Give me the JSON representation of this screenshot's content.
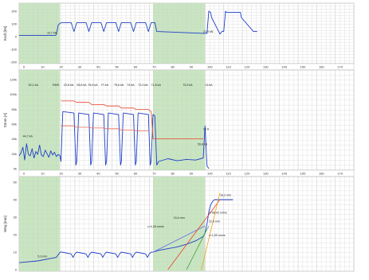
{
  "chart_data": [
    {
      "type": "line",
      "ylabel": "Kraft [kN]",
      "ylim": [
        -200,
        200
      ],
      "yticks": [
        "200",
        "100",
        "0",
        "-100",
        "-200"
      ],
      "xlim": [
        0,
        180
      ],
      "xticks": [
        "0",
        "10",
        "20",
        "30",
        "40",
        "50",
        "60",
        "70",
        "80",
        "90",
        "100",
        "110",
        "120",
        "130",
        "140",
        "150",
        "160",
        "170"
      ],
      "annotations": [
        "10,7 kN",
        "21,9 kN"
      ],
      "series": [
        {
          "color": "#1f3fc8",
          "x": [
            0,
            19.5,
            20,
            21,
            22,
            23,
            23.5,
            27,
            28,
            29.5,
            31,
            32,
            35,
            36,
            37.5,
            39,
            40,
            43,
            44,
            45.5,
            47,
            48,
            51,
            52,
            53.5,
            55,
            56,
            59,
            60,
            61.5,
            63,
            64,
            67,
            68,
            69.5,
            71,
            72,
            73,
            74,
            100,
            101,
            102,
            103,
            103.5,
            108,
            109,
            110,
            111,
            111.5,
            118.5,
            119,
            119.5,
            126,
            127,
            128
          ],
          "values": [
            10,
            10,
            15,
            90,
            105,
            110,
            110,
            110,
            110,
            40,
            110,
            110,
            110,
            110,
            40,
            110,
            110,
            110,
            110,
            40,
            110,
            110,
            110,
            110,
            40,
            110,
            110,
            110,
            110,
            40,
            110,
            110,
            110,
            110,
            40,
            110,
            110,
            110,
            40,
            25,
            25,
            200,
            190,
            150,
            20,
            40,
            40,
            200,
            190,
            190,
            190,
            150,
            40,
            40,
            40
          ]
        }
      ]
    },
    {
      "type": "line",
      "ylabel": "Strom [A]",
      "ylim": [
        0,
        125
      ],
      "yticks": [
        "120k",
        "100k",
        "80k",
        "60k",
        "40k",
        "20k",
        "0k"
      ],
      "xlim": [
        0,
        180
      ],
      "xticks": [
        "0",
        "10",
        "20",
        "30",
        "40",
        "50",
        "60",
        "70",
        "80",
        "90",
        "100",
        "110",
        "120",
        "130",
        "140",
        "150",
        "160",
        "170"
      ],
      "annotations": [
        "44,7 kA",
        "52,1 kA",
        "RMS",
        "22,6 kA",
        "26,8 kA",
        "76,4 kA",
        "77 kA",
        "75,6 kA",
        "74 kA",
        "72,2 kA",
        "71,8 kA",
        "70,3 kA",
        "13 kA",
        "22 A",
        "59,8 kA"
      ],
      "series": [
        {
          "name": "",
          "color": "#1f3fc8",
          "x": [
            0,
            1,
            2,
            3,
            4,
            5,
            6,
            7,
            8,
            9,
            10,
            11,
            12,
            13,
            14,
            15,
            16,
            17,
            18,
            19,
            20,
            21,
            22,
            22.5,
            23.5,
            29.5,
            30.5,
            31,
            32,
            37.5,
            38.5,
            39,
            40,
            45.5,
            46.5,
            47,
            48,
            53.5,
            54.5,
            55,
            56,
            61.5,
            62.5,
            63,
            64,
            69.5,
            70.5,
            71,
            72,
            73,
            74,
            75,
            80,
            85,
            90,
            95,
            99,
            100,
            101,
            102
          ],
          "values": [
            18,
            22,
            30,
            12,
            35,
            20,
            18,
            28,
            15,
            24,
            20,
            33,
            19,
            17,
            26,
            21,
            16,
            25,
            19,
            23,
            17,
            20,
            18,
            10,
            80,
            78,
            5,
            10,
            78,
            76,
            5,
            10,
            78,
            76,
            5,
            10,
            78,
            76,
            5,
            10,
            78,
            76,
            5,
            10,
            78,
            76,
            5,
            10,
            76,
            74,
            5,
            10,
            14,
            11,
            13,
            12,
            15,
            60,
            4,
            0
          ]
        },
        {
          "name": "",
          "color": "#e8442a",
          "x": [
            22.5,
            29.5,
            31,
            37.5,
            39,
            45.5,
            47,
            53.5,
            55,
            61.5,
            63,
            69.5,
            71,
            72,
            99
          ],
          "values": [
            95,
            95,
            93,
            93,
            90,
            90,
            88,
            88,
            85,
            85,
            83,
            83,
            80,
            42,
            42
          ]
        },
        {
          "name": "",
          "color": "#ee6a55",
          "x": [
            22.5,
            29.5,
            31,
            37.5,
            39,
            45.5,
            47,
            53.5,
            55,
            61.5,
            63,
            69.5
          ],
          "values": [
            60,
            60,
            58,
            58,
            57,
            57,
            56,
            56,
            54,
            54,
            53,
            53
          ]
        }
      ]
    },
    {
      "type": "line",
      "ylabel": "Weg [mm]",
      "ylim": [
        0,
        50
      ],
      "yticks": [
        "50",
        "40",
        "30",
        "20",
        "10",
        "0"
      ],
      "xlim": [
        0,
        180
      ],
      "xticks": [
        "0",
        "10",
        "20",
        "30",
        "40",
        "50",
        "60",
        "70",
        "80",
        "90",
        "100",
        "110",
        "120",
        "130",
        "140",
        "150",
        "160",
        "170"
      ],
      "annotations": [
        "5,3 mm",
        "v=0,28 mm/s",
        "15,4 mm",
        "v=56,42 mm/s",
        "22,9 mm",
        "v=1,59 mm/s",
        "16,2 mm"
      ],
      "series": [
        {
          "name": "",
          "color": "#1f3fc8",
          "x": [
            0,
            10,
            20,
            22,
            23,
            28,
            29,
            30,
            31,
            36,
            37,
            38,
            39,
            44,
            45,
            46,
            47,
            52,
            53,
            54,
            55,
            60,
            61,
            62,
            63,
            68,
            69,
            70,
            71,
            72,
            75,
            80,
            85,
            90,
            95,
            99,
            100,
            101,
            102,
            103,
            104,
            105,
            106,
            108,
            110,
            115
          ],
          "values": [
            4,
            5,
            7,
            10,
            10,
            9,
            7,
            9,
            10,
            9,
            7,
            9,
            10,
            9,
            7,
            9,
            10,
            9,
            7,
            9,
            10,
            9,
            7,
            9,
            10,
            9,
            7,
            9,
            10,
            10,
            11,
            12,
            13,
            14.5,
            16.5,
            19,
            21,
            26,
            33,
            37,
            39,
            40,
            40,
            40,
            40,
            40
          ]
        },
        {
          "name": "",
          "color": "#6b6be8",
          "x": [
            72,
            100
          ],
          "values": [
            10,
            25
          ]
        },
        {
          "name": "",
          "color": "#e8442a",
          "x": [
            80,
            108
          ],
          "values": [
            0,
            40
          ]
        },
        {
          "name": "",
          "color": "#3aa03a",
          "x": [
            90,
            102
          ],
          "values": [
            0,
            25
          ]
        },
        {
          "name": "",
          "color": "#f0a020",
          "x": [
            98,
            108
          ],
          "values": [
            0,
            44
          ]
        }
      ]
    }
  ],
  "colors": {
    "shade": "#c8e6c0",
    "grid": "#cfcfcf",
    "axis_text": "#333333",
    "marker": "#222222",
    "background": "#ffffff",
    "frame": "#aaaaaa"
  }
}
